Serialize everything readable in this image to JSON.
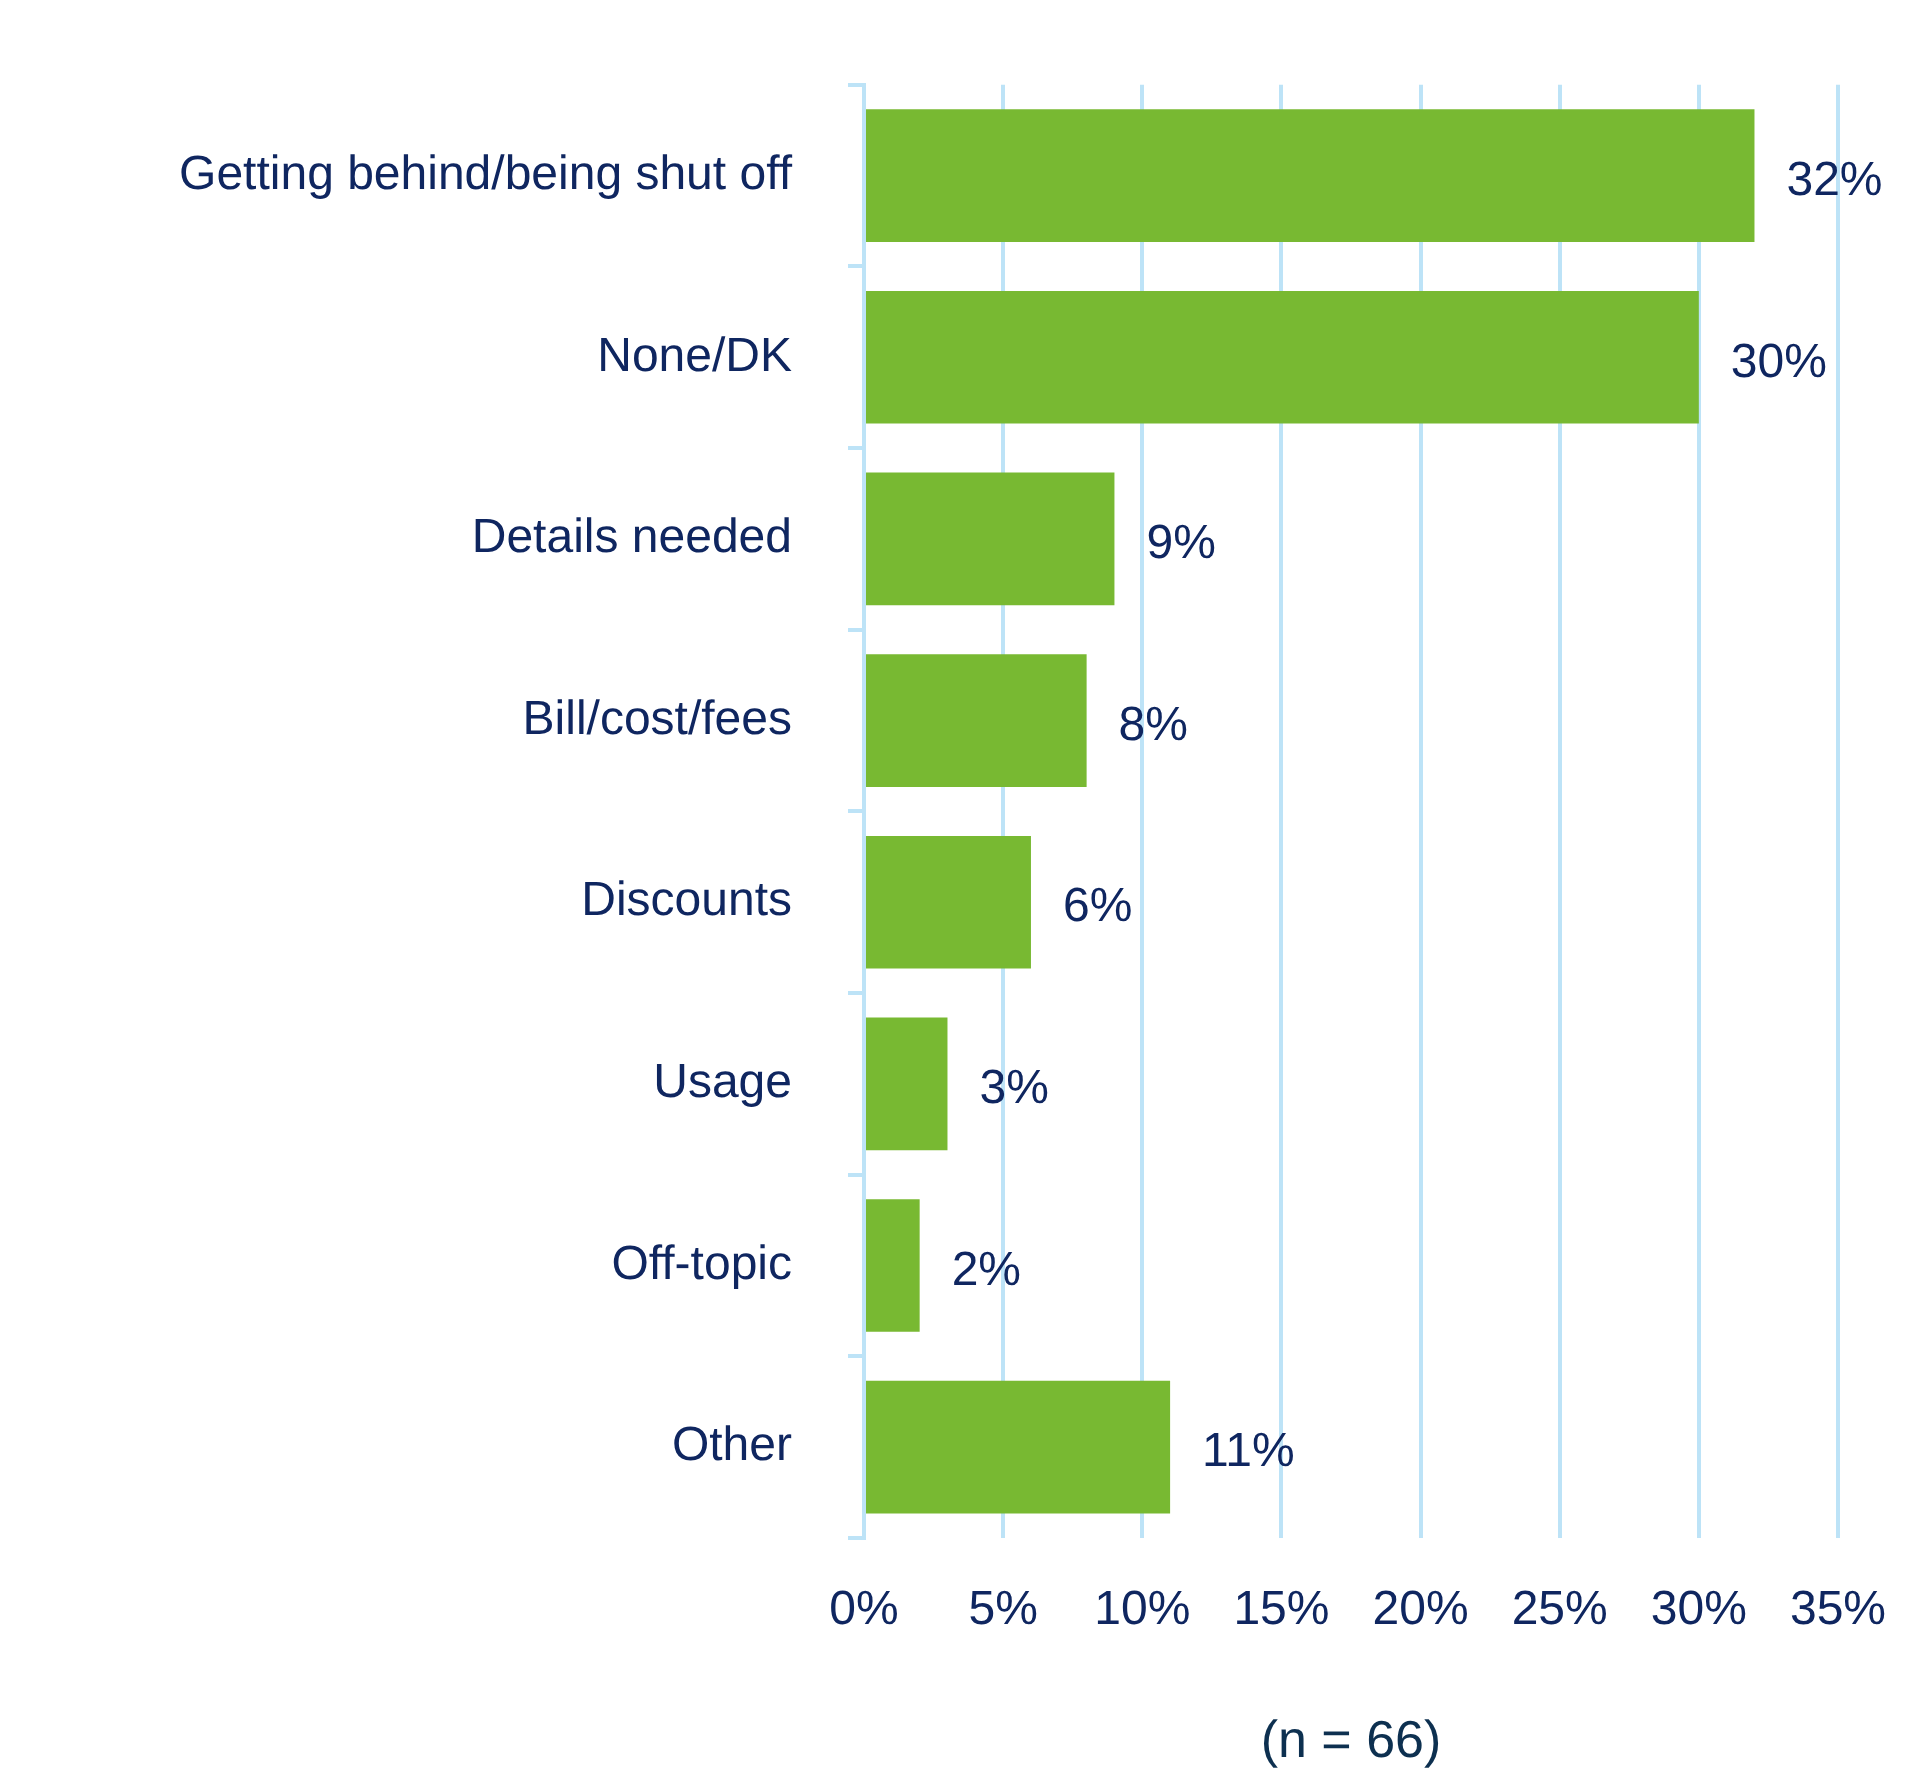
{
  "chart_data": {
    "type": "bar",
    "orientation": "horizontal",
    "xlabel": "(n = 66)",
    "categories": [
      "Getting behind/being shut off",
      "None/DK",
      "Details needed",
      "Bill/cost/fees",
      "Discounts",
      "Usage",
      "Off-topic",
      "Other"
    ],
    "values": [
      32,
      30,
      9,
      8,
      6,
      3,
      2,
      11
    ],
    "value_labels": [
      "32%",
      "30%",
      "9%",
      "8%",
      "6%",
      "3%",
      "2%",
      "11%"
    ],
    "color": "#78b932",
    "xlim": [
      0,
      35
    ],
    "xticks": [
      {
        "value": 0,
        "label": "0%"
      },
      {
        "value": 5,
        "label": "5%"
      },
      {
        "value": 10,
        "label": "10%"
      },
      {
        "value": 15,
        "label": "15%"
      },
      {
        "value": 20,
        "label": "20%"
      },
      {
        "value": 25,
        "label": "25%"
      },
      {
        "value": 30,
        "label": "30%"
      },
      {
        "value": 35,
        "label": "35%"
      }
    ],
    "grid": "x",
    "legend": false
  }
}
